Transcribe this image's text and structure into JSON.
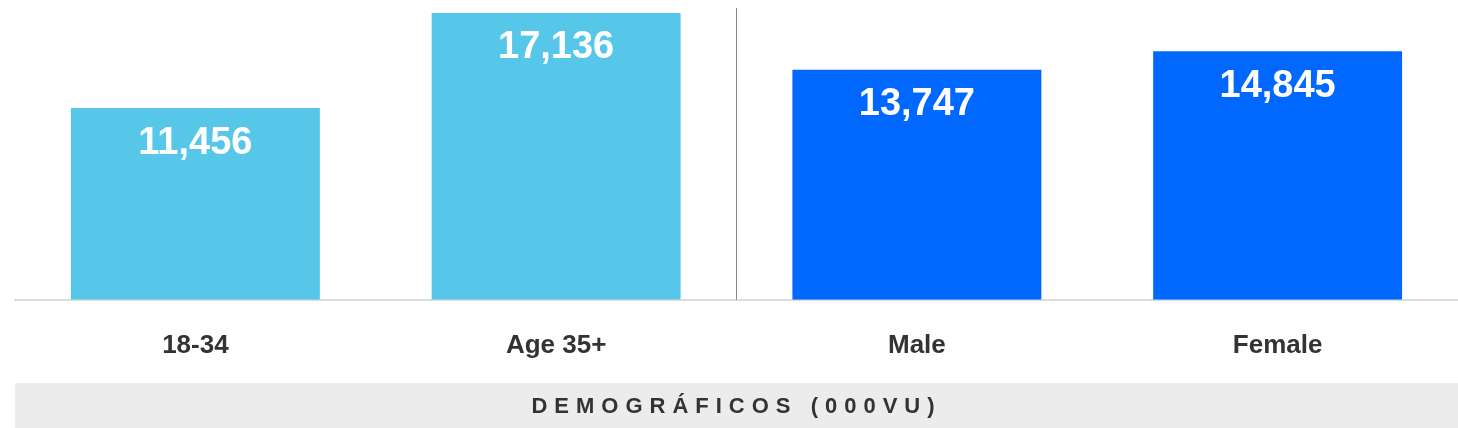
{
  "chart_data": {
    "type": "bar",
    "xlabel": "DEMOGRÁFICOS (000VU)",
    "categories": [
      "18-34",
      "Age 35+",
      "Male",
      "Female"
    ],
    "values": [
      11456,
      17136,
      13747,
      14845
    ],
    "colors": [
      "#56c7e8",
      "#56c7e8",
      "#0068ff",
      "#0068ff"
    ],
    "value_labels": [
      "11,456",
      "17,136",
      "13,747",
      "14,845"
    ]
  }
}
